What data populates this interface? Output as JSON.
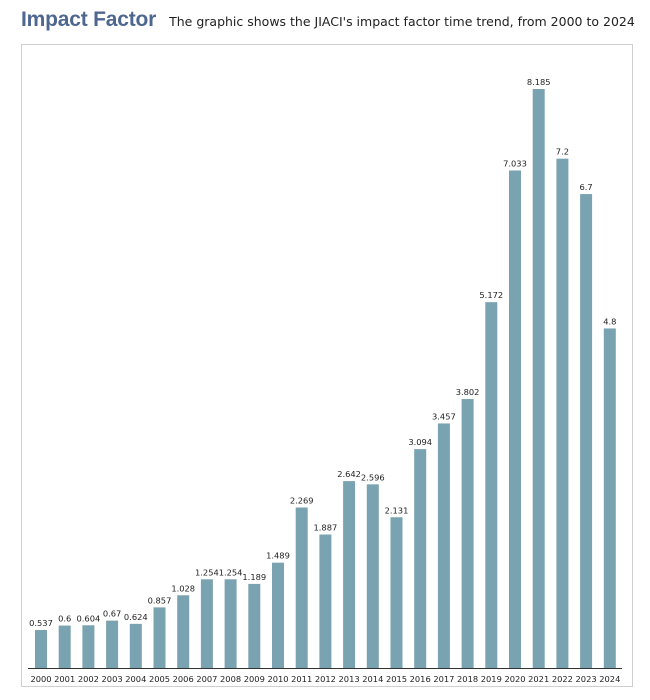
{
  "header": {
    "title": "Impact Factor",
    "subtitle": "The graphic shows the JIACI's impact factor time trend, from 2000 to 2024"
  },
  "colors": {
    "bar": "#7aa3b1",
    "title": "#4d6791",
    "axis": "#333333"
  },
  "chart_data": {
    "type": "bar",
    "title": "Impact Factor",
    "subtitle": "The graphic shows the JIACI's impact factor time trend, from 2000 to 2024",
    "xlabel": "",
    "ylabel": "",
    "categories": [
      "2000",
      "2001",
      "2002",
      "2003",
      "2004",
      "2005",
      "2006",
      "2007",
      "2008",
      "2009",
      "2010",
      "2011",
      "2012",
      "2013",
      "2014",
      "2015",
      "2016",
      "2017",
      "2018",
      "2019",
      "2020",
      "2021",
      "2022",
      "2023",
      "2024"
    ],
    "values": [
      0.537,
      0.6,
      0.604,
      0.67,
      0.624,
      0.857,
      1.028,
      1.254,
      1.254,
      1.189,
      1.489,
      2.269,
      1.887,
      2.642,
      2.596,
      2.131,
      3.094,
      3.457,
      3.802,
      5.172,
      7.033,
      8.185,
      7.2,
      6.7,
      4.8
    ],
    "value_labels": [
      "0.537",
      "0.6",
      "0.604",
      "0.67",
      "0.624",
      "0.857",
      "1.028",
      "1.254",
      "1.254",
      "1.189",
      "1.489",
      "2.269",
      "1.887",
      "2.642",
      "2.596",
      "2.131",
      "3.094",
      "3.457",
      "3.802",
      "5.172",
      "7.033",
      "8.185",
      "7.2",
      "6.7",
      "4.8"
    ],
    "ylim": [
      0,
      8.185
    ],
    "grid": false,
    "legend": "none"
  }
}
